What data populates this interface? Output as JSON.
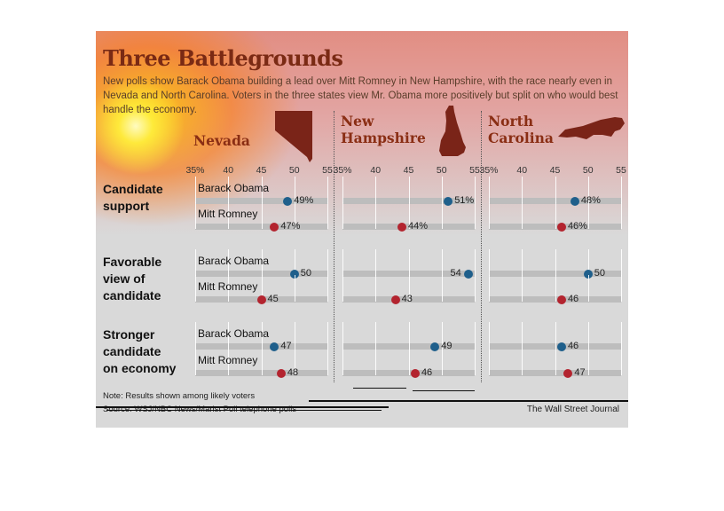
{
  "title": "Three Battlegrounds",
  "subtitle": "New polls show Barack Obama building a lead over Mitt Romney in New Hampshire, with the race nearly even in Nevada and North Carolina. Voters in the three states view Mr. Obama more positively but split on who would best handle the economy.",
  "note": "Note: Results shown among likely voters",
  "source": "Source: WSJ/NBC News/Marist Poll telephone polls",
  "credit": "The Wall Street Journal",
  "colors": {
    "obama": "#1f5f8b",
    "romney": "#b3242f",
    "title": "#7a2a14",
    "state_shape": "#7a2418"
  },
  "chart_data": {
    "type": "scatter",
    "xlim": [
      35,
      55
    ],
    "ticks": [
      "35%",
      "40",
      "45",
      "50",
      "55"
    ],
    "states": [
      {
        "name": "Nevada",
        "shape_icon": "nevada-state-icon"
      },
      {
        "name": "New Hampshire",
        "shape_icon": "new-hampshire-state-icon"
      },
      {
        "name": "North Carolina",
        "shape_icon": "north-carolina-state-icon"
      }
    ],
    "measures": [
      {
        "label": "Candidate support",
        "label_lines": [
          "Candidate",
          "support"
        ],
        "percent_suffix": true,
        "values": {
          "obama": [
            49,
            51,
            48
          ],
          "romney": [
            47,
            44,
            46
          ]
        }
      },
      {
        "label": "Favorable view of candidate",
        "label_lines": [
          "Favorable",
          "view of",
          "candidate"
        ],
        "percent_suffix": false,
        "values": {
          "obama": [
            50,
            54,
            50
          ],
          "romney": [
            45,
            43,
            46
          ]
        }
      },
      {
        "label": "Stronger candidate on economy",
        "label_lines": [
          "Stronger",
          "candidate",
          "on economy"
        ],
        "percent_suffix": false,
        "values": {
          "obama": [
            47,
            49,
            46
          ],
          "romney": [
            48,
            46,
            47
          ]
        }
      }
    ],
    "candidates": [
      {
        "key": "obama",
        "name": "Barack Obama"
      },
      {
        "key": "romney",
        "name": "Mitt Romney"
      }
    ],
    "value_labels": {
      "obama": [
        [
          "49%",
          "51%",
          "48%"
        ],
        [
          "50",
          "54",
          "50"
        ],
        [
          "47",
          "49",
          "46"
        ]
      ],
      "romney": [
        [
          "47%",
          "44%",
          "46%"
        ],
        [
          "45",
          "43",
          "46"
        ],
        [
          "48",
          "46",
          "47"
        ]
      ]
    },
    "gridlines": true
  }
}
